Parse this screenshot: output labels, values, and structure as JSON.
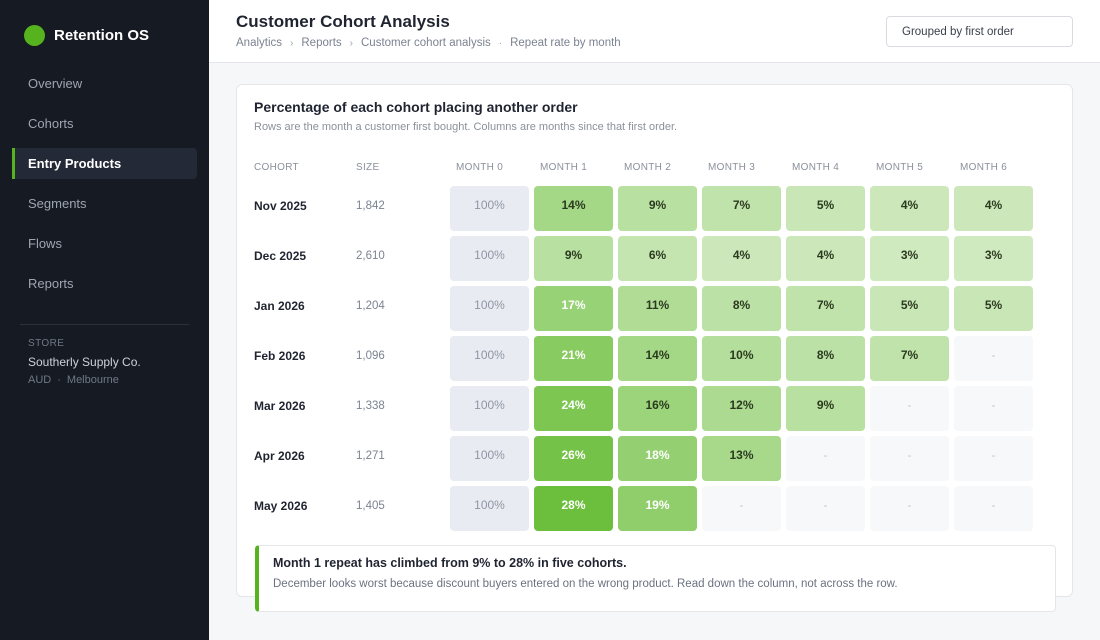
{
  "sidebar": {
    "brand": "Retention OS",
    "items": [
      {
        "label": "Overview",
        "active": false
      },
      {
        "label": "Cohorts",
        "active": false
      },
      {
        "label": "Entry Products",
        "active": true
      },
      {
        "label": "Segments",
        "active": false
      },
      {
        "label": "Flows",
        "active": false
      },
      {
        "label": "Reports",
        "active": false
      }
    ],
    "store": {
      "label": "STORE",
      "name": "Southerly Supply Co.",
      "currency": "AUD",
      "meta_sep": "·",
      "city": "Melbourne"
    }
  },
  "header": {
    "title": "Customer Cohort Analysis",
    "breadcrumb": [
      "Analytics",
      "Reports",
      "Customer cohort analysis",
      "Repeat rate by month"
    ],
    "breadcrumb_seps": [
      "›",
      "›",
      "·"
    ],
    "group_select": {
      "value": "Grouped by first order"
    }
  },
  "card": {
    "title": "Percentage of each cohort placing another order",
    "subtitle": "Rows are the month a customer first bought. Columns are months since that first order."
  },
  "table": {
    "columns": [
      "COHORT",
      "SIZE",
      "MONTH 0",
      "MONTH 1",
      "MONTH 2",
      "MONTH 3",
      "MONTH 4",
      "MONTH 5",
      "MONTH 6"
    ],
    "empty_text": "-",
    "rows": [
      {
        "cohort": "Nov 2025",
        "size": "1,842",
        "cells": [
          "100%",
          "14%",
          "9%",
          "7%",
          "5%",
          "4%",
          "4%"
        ]
      },
      {
        "cohort": "Dec 2025",
        "size": "2,610",
        "cells": [
          "100%",
          "9%",
          "6%",
          "4%",
          "4%",
          "3%",
          "3%"
        ]
      },
      {
        "cohort": "Jan 2026",
        "size": "1,204",
        "cells": [
          "100%",
          "17%",
          "11%",
          "8%",
          "7%",
          "5%",
          "5%"
        ]
      },
      {
        "cohort": "Feb 2026",
        "size": "1,096",
        "cells": [
          "100%",
          "21%",
          "14%",
          "10%",
          "8%",
          "7%",
          "-"
        ]
      },
      {
        "cohort": "Mar 2026",
        "size": "1,338",
        "cells": [
          "100%",
          "24%",
          "16%",
          "12%",
          "9%",
          "-",
          "-"
        ]
      },
      {
        "cohort": "Apr 2026",
        "size": "1,271",
        "cells": [
          "100%",
          "26%",
          "18%",
          "13%",
          "-",
          "-",
          "-"
        ]
      },
      {
        "cohort": "May 2026",
        "size": "1,405",
        "cells": [
          "100%",
          "28%",
          "19%",
          "-",
          "-",
          "-",
          "-"
        ]
      }
    ]
  },
  "note": {
    "title": "Month 1 repeat has climbed from 9% to 28% in five cohorts.",
    "body": "December looks worst because discount buyers entered on the wrong product. Read down the column, not across the row."
  },
  "colors": {
    "accent": "#56b31d",
    "sidebar_bg": "#161a22",
    "heat_low": "#dcefd0",
    "heat_high": "#6cbf3c"
  }
}
